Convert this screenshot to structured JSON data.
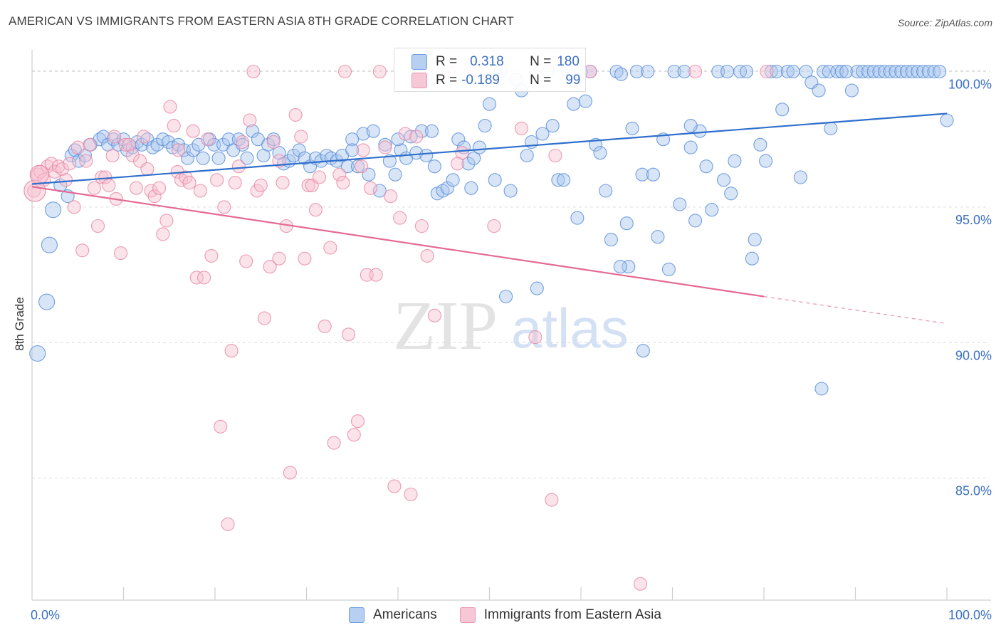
{
  "title": "AMERICAN VS IMMIGRANTS FROM EASTERN ASIA 8TH GRADE CORRELATION CHART",
  "source": "Source: ZipAtlas.com",
  "watermark": {
    "zip": "ZIP",
    "atlas": "atlas"
  },
  "stats": {
    "r_label": "R =",
    "n_label": "N =",
    "americans": {
      "r": "0.318",
      "n": "180"
    },
    "immigrants": {
      "r": "-0.189",
      "n": "99"
    }
  },
  "legend": {
    "americans": "Americans",
    "immigrants": "Immigrants from Eastern Asia"
  },
  "colors": {
    "blue_fill": "#a9c6ee",
    "blue_stroke": "#5c8fd9",
    "blue_line": "#2f6fcc",
    "pink_fill": "#f7c0d0",
    "pink_stroke": "#e88aa8",
    "pink_line": "#e46a94",
    "tick_label": "#3b6fc4",
    "grid": "#dcdcdc"
  },
  "chart_data": {
    "type": "scatter",
    "title": "AMERICAN VS IMMIGRANTS FROM EASTERN ASIA 8TH GRADE CORRELATION CHART",
    "xlabel": "",
    "ylabel": "8th Grade",
    "xlim": [
      0,
      100
    ],
    "ylim": [
      80.5,
      100.8
    ],
    "x_tick_labels": [
      "0.0%",
      "100.0%"
    ],
    "y_ticks": [
      85,
      90,
      95,
      100
    ],
    "y_tick_labels": [
      "85.0%",
      "90.0%",
      "95.0%",
      "100.0%"
    ],
    "grid": true,
    "legend_position": "bottom-center",
    "series": [
      {
        "name": "Americans",
        "color": "#5c8fd9",
        "trend": {
          "x": [
            0,
            100
          ],
          "y": [
            95.85,
            98.45
          ]
        },
        "points": [
          [
            0.6,
            89.6
          ],
          [
            1.6,
            91.5
          ],
          [
            1.9,
            93.6
          ],
          [
            2.3,
            94.9
          ],
          [
            3.1,
            95.8
          ],
          [
            3.9,
            95.4
          ],
          [
            4.3,
            96.9
          ],
          [
            4.7,
            97.1
          ],
          [
            5.1,
            96.7
          ],
          [
            5.8,
            96.9
          ],
          [
            6.4,
            97.3
          ],
          [
            7.4,
            97.5
          ],
          [
            7.8,
            97.6
          ],
          [
            8.3,
            97.3
          ],
          [
            8.9,
            97.5
          ],
          [
            9.4,
            97.3
          ],
          [
            10.0,
            97.5
          ],
          [
            10.4,
            97.1
          ],
          [
            11.0,
            97.2
          ],
          [
            11.5,
            97.4
          ],
          [
            12.0,
            97.3
          ],
          [
            12.6,
            97.5
          ],
          [
            13.2,
            97.2
          ],
          [
            13.7,
            97.3
          ],
          [
            14.3,
            97.5
          ],
          [
            14.9,
            97.4
          ],
          [
            15.4,
            97.2
          ],
          [
            16.0,
            97.3
          ],
          [
            16.6,
            97.1
          ],
          [
            17.0,
            96.8
          ],
          [
            17.6,
            97.1
          ],
          [
            18.2,
            97.3
          ],
          [
            18.7,
            96.8
          ],
          [
            19.4,
            97.5
          ],
          [
            19.9,
            97.3
          ],
          [
            20.4,
            96.8
          ],
          [
            20.9,
            97.3
          ],
          [
            21.5,
            97.5
          ],
          [
            22.0,
            97.1
          ],
          [
            22.6,
            97.5
          ],
          [
            23.0,
            97.3
          ],
          [
            23.5,
            96.8
          ],
          [
            24.1,
            97.8
          ],
          [
            24.7,
            97.5
          ],
          [
            25.3,
            96.9
          ],
          [
            25.8,
            97.3
          ],
          [
            26.4,
            97.5
          ],
          [
            27.0,
            97.0
          ],
          [
            27.5,
            96.6
          ],
          [
            28.1,
            96.7
          ],
          [
            28.6,
            96.9
          ],
          [
            29.2,
            97.1
          ],
          [
            29.8,
            96.8
          ],
          [
            30.4,
            96.5
          ],
          [
            31.0,
            96.8
          ],
          [
            31.6,
            96.7
          ],
          [
            32.2,
            96.9
          ],
          [
            32.7,
            96.8
          ],
          [
            33.3,
            96.7
          ],
          [
            33.9,
            96.9
          ],
          [
            34.5,
            96.5
          ],
          [
            35.0,
            97.5
          ],
          [
            35.6,
            96.5
          ],
          [
            36.2,
            97.7
          ],
          [
            36.8,
            96.2
          ],
          [
            37.3,
            97.8
          ],
          [
            38.0,
            95.6
          ],
          [
            38.6,
            97.3
          ],
          [
            39.1,
            96.7
          ],
          [
            39.7,
            96.2
          ],
          [
            40.3,
            97.1
          ],
          [
            40.9,
            96.8
          ],
          [
            41.4,
            97.6
          ],
          [
            42.0,
            97.0
          ],
          [
            42.6,
            97.8
          ],
          [
            43.1,
            96.9
          ],
          [
            43.7,
            97.8
          ],
          [
            44.3,
            95.5
          ],
          [
            44.9,
            95.6
          ],
          [
            45.4,
            95.7
          ],
          [
            46.0,
            96.0
          ],
          [
            46.6,
            97.5
          ],
          [
            47.2,
            97.2
          ],
          [
            47.7,
            96.6
          ],
          [
            48.3,
            96.8
          ],
          [
            48.9,
            97.2
          ],
          [
            49.5,
            98.0
          ],
          [
            50.0,
            98.8
          ],
          [
            50.6,
            96.0
          ],
          [
            51.2,
            100.0
          ],
          [
            51.8,
            91.7
          ],
          [
            52.3,
            95.6
          ],
          [
            52.9,
            99.7
          ],
          [
            53.5,
            99.3
          ],
          [
            54.1,
            96.9
          ],
          [
            54.6,
            97.4
          ],
          [
            55.2,
            92.0
          ],
          [
            55.8,
            97.7
          ],
          [
            56.4,
            100.0
          ],
          [
            56.9,
            98.0
          ],
          [
            57.5,
            96.0
          ],
          [
            58.1,
            96.0
          ],
          [
            58.6,
            100.0
          ],
          [
            59.2,
            98.8
          ],
          [
            59.6,
            94.6
          ],
          [
            60.0,
            100.0
          ],
          [
            60.5,
            98.9
          ],
          [
            61.0,
            100.0
          ],
          [
            61.6,
            97.3
          ],
          [
            62.1,
            97.0
          ],
          [
            62.7,
            95.6
          ],
          [
            63.3,
            93.8
          ],
          [
            63.9,
            100.0
          ],
          [
            64.4,
            99.9
          ],
          [
            65.0,
            94.4
          ],
          [
            65.6,
            97.9
          ],
          [
            66.1,
            100.0
          ],
          [
            66.7,
            96.2
          ],
          [
            67.3,
            100.0
          ],
          [
            67.9,
            96.2
          ],
          [
            68.4,
            93.9
          ],
          [
            69.0,
            97.5
          ],
          [
            69.6,
            92.7
          ],
          [
            70.2,
            100.0
          ],
          [
            70.8,
            95.1
          ],
          [
            71.3,
            100.0
          ],
          [
            72.0,
            97.2
          ],
          [
            72.5,
            94.5
          ],
          [
            73.0,
            97.8
          ],
          [
            73.7,
            96.5
          ],
          [
            74.3,
            94.9
          ],
          [
            75.0,
            100.0
          ],
          [
            75.6,
            96.0
          ],
          [
            76.0,
            100.0
          ],
          [
            76.4,
            95.5
          ],
          [
            76.8,
            96.7
          ],
          [
            77.4,
            100.0
          ],
          [
            78.1,
            100.0
          ],
          [
            78.7,
            93.1
          ],
          [
            79.0,
            93.8
          ],
          [
            79.6,
            97.3
          ],
          [
            80.2,
            96.7
          ],
          [
            80.8,
            100.0
          ],
          [
            81.4,
            100.0
          ],
          [
            82.0,
            98.6
          ],
          [
            82.6,
            100.0
          ],
          [
            83.2,
            100.0
          ],
          [
            84.0,
            96.1
          ],
          [
            84.6,
            100.0
          ],
          [
            85.2,
            99.6
          ],
          [
            86.0,
            99.3
          ],
          [
            86.5,
            100.0
          ],
          [
            87.1,
            100.0
          ],
          [
            88.0,
            100.0
          ],
          [
            88.5,
            100.0
          ],
          [
            89.0,
            100.0
          ],
          [
            89.6,
            99.3
          ],
          [
            90.2,
            100.0
          ],
          [
            90.8,
            100.0
          ],
          [
            91.4,
            100.0
          ],
          [
            92.0,
            100.0
          ],
          [
            92.6,
            100.0
          ],
          [
            93.2,
            100.0
          ],
          [
            93.8,
            100.0
          ],
          [
            94.4,
            100.0
          ],
          [
            95.0,
            100.0
          ],
          [
            95.6,
            100.0
          ],
          [
            96.2,
            100.0
          ],
          [
            96.8,
            100.0
          ],
          [
            97.4,
            100.0
          ],
          [
            98.0,
            100.0
          ],
          [
            98.6,
            100.0
          ],
          [
            99.2,
            100.0
          ],
          [
            100.0,
            98.2
          ],
          [
            72.0,
            98.0
          ],
          [
            66.8,
            89.7
          ],
          [
            86.3,
            88.3
          ],
          [
            87.3,
            97.9
          ],
          [
            65.2,
            92.8
          ],
          [
            64.3,
            92.8
          ],
          [
            35.0,
            97.1
          ],
          [
            40.0,
            97.5
          ],
          [
            44.0,
            96.5
          ],
          [
            48.0,
            95.7
          ]
        ]
      },
      {
        "name": "Immigrants from Eastern Asia",
        "color": "#e88aa8",
        "trend": {
          "x": [
            0,
            80
          ],
          "y": [
            95.75,
            91.7
          ]
        },
        "trend_dashed": {
          "x": [
            80,
            100
          ],
          "y": [
            91.7,
            90.7
          ]
        },
        "points": [
          [
            0.2,
            95.6
          ],
          [
            0.6,
            96.2
          ],
          [
            0.9,
            96.3
          ],
          [
            1.3,
            96.0
          ],
          [
            1.7,
            96.5
          ],
          [
            2.1,
            96.6
          ],
          [
            2.5,
            96.3
          ],
          [
            2.9,
            96.5
          ],
          [
            3.3,
            96.4
          ],
          [
            3.7,
            96.0
          ],
          [
            4.1,
            96.6
          ],
          [
            4.6,
            95.0
          ],
          [
            5.0,
            97.2
          ],
          [
            5.5,
            93.4
          ],
          [
            5.9,
            96.7
          ],
          [
            6.3,
            97.3
          ],
          [
            6.8,
            95.7
          ],
          [
            7.2,
            94.3
          ],
          [
            7.6,
            96.1
          ],
          [
            8.0,
            96.1
          ],
          [
            8.4,
            95.8
          ],
          [
            8.8,
            96.9
          ],
          [
            9.2,
            95.3
          ],
          [
            9.7,
            93.3
          ],
          [
            10.2,
            97.3
          ],
          [
            10.6,
            97.3
          ],
          [
            11.0,
            96.9
          ],
          [
            11.4,
            95.7
          ],
          [
            11.8,
            96.7
          ],
          [
            12.2,
            97.6
          ],
          [
            12.6,
            96.4
          ],
          [
            13.0,
            95.6
          ],
          [
            13.4,
            95.4
          ],
          [
            13.9,
            95.7
          ],
          [
            14.3,
            94.0
          ],
          [
            14.7,
            94.5
          ],
          [
            15.1,
            98.7
          ],
          [
            15.5,
            98.0
          ],
          [
            15.9,
            96.3
          ],
          [
            16.3,
            96.0
          ],
          [
            16.8,
            96.1
          ],
          [
            17.2,
            95.9
          ],
          [
            17.6,
            97.8
          ],
          [
            18.0,
            92.4
          ],
          [
            18.4,
            95.6
          ],
          [
            18.8,
            92.4
          ],
          [
            19.2,
            97.5
          ],
          [
            19.6,
            93.2
          ],
          [
            20.2,
            96.0
          ],
          [
            20.6,
            86.9
          ],
          [
            21.0,
            95.0
          ],
          [
            21.4,
            83.3
          ],
          [
            21.8,
            89.7
          ],
          [
            22.2,
            95.9
          ],
          [
            22.6,
            96.5
          ],
          [
            23.0,
            97.4
          ],
          [
            23.4,
            93.0
          ],
          [
            23.8,
            98.2
          ],
          [
            24.2,
            100.0
          ],
          [
            24.6,
            95.6
          ],
          [
            25.0,
            95.8
          ],
          [
            25.4,
            90.9
          ],
          [
            26.0,
            92.8
          ],
          [
            26.4,
            97.4
          ],
          [
            27.0,
            93.1
          ],
          [
            27.4,
            95.9
          ],
          [
            27.8,
            94.3
          ],
          [
            28.2,
            85.2
          ],
          [
            28.8,
            98.4
          ],
          [
            29.4,
            97.6
          ],
          [
            29.8,
            93.1
          ],
          [
            30.2,
            95.8
          ],
          [
            30.6,
            95.8
          ],
          [
            31.0,
            94.9
          ],
          [
            31.4,
            96.1
          ],
          [
            32.0,
            90.6
          ],
          [
            32.6,
            93.5
          ],
          [
            33.0,
            86.3
          ],
          [
            33.6,
            96.2
          ],
          [
            34.2,
            100.0
          ],
          [
            34.6,
            90.3
          ],
          [
            35.2,
            86.6
          ],
          [
            35.6,
            87.1
          ],
          [
            36.2,
            97.1
          ],
          [
            36.6,
            92.5
          ],
          [
            37.0,
            95.7
          ],
          [
            37.6,
            92.5
          ],
          [
            38.0,
            100.0
          ],
          [
            38.6,
            97.2
          ],
          [
            39.2,
            95.4
          ],
          [
            39.6,
            84.7
          ],
          [
            40.2,
            94.6
          ],
          [
            40.8,
            97.7
          ],
          [
            41.4,
            84.4
          ],
          [
            42.0,
            97.6
          ],
          [
            42.6,
            94.3
          ],
          [
            43.2,
            93.2
          ],
          [
            45.5,
            100.0
          ],
          [
            47.0,
            97.0
          ],
          [
            46.5,
            96.6
          ],
          [
            48.5,
            100.0
          ],
          [
            50.5,
            94.3
          ],
          [
            53.5,
            97.9
          ],
          [
            55.0,
            90.2
          ],
          [
            56.8,
            84.2
          ],
          [
            57.2,
            96.9
          ],
          [
            61.0,
            100.0
          ],
          [
            66.5,
            81.1
          ],
          [
            72.5,
            100.0
          ],
          [
            80.3,
            100.0
          ],
          [
            36.0,
            96.5
          ],
          [
            44.0,
            91.0
          ],
          [
            9.0,
            97.6
          ],
          [
            16.0,
            97.1
          ],
          [
            27.0,
            96.7
          ],
          [
            34.0,
            95.9
          ]
        ]
      }
    ]
  }
}
